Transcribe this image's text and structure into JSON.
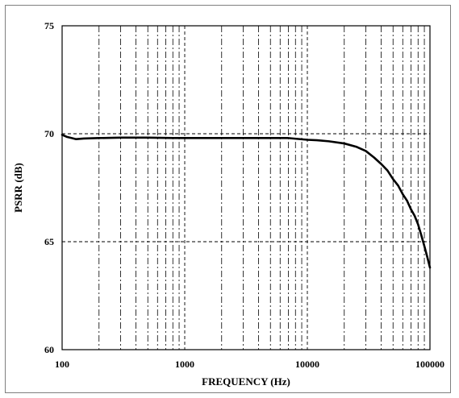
{
  "chart_data": {
    "type": "line",
    "xlabel": "FREQUENCY (Hz)",
    "ylabel": "PSRR (dB)",
    "x_scale": "log",
    "xlim": [
      100,
      100000
    ],
    "ylim": [
      60,
      75
    ],
    "x_ticks": [
      100,
      1000,
      10000,
      100000
    ],
    "x_tick_labels": [
      "100",
      "1000",
      "10000",
      "100000"
    ],
    "y_ticks": [
      60,
      65,
      70,
      75
    ],
    "y_tick_labels": [
      "60",
      "65",
      "70",
      "75"
    ],
    "grid": true,
    "grid_style": "dashed",
    "legend": "none",
    "series": [
      {
        "color": "#000000",
        "x": [
          100,
          110,
          120,
          130,
          150,
          200,
          300,
          500,
          800,
          1000,
          1500,
          2000,
          3000,
          5000,
          7000,
          10000,
          12000,
          15000,
          20000,
          25000,
          30000,
          35000,
          40000,
          45000,
          50000,
          55000,
          60000,
          65000,
          70000,
          75000,
          80000,
          85000,
          90000,
          95000,
          100000
        ],
        "y": [
          69.95,
          69.85,
          69.8,
          69.75,
          69.78,
          69.8,
          69.82,
          69.82,
          69.8,
          69.8,
          69.8,
          69.8,
          69.8,
          69.8,
          69.8,
          69.72,
          69.7,
          69.65,
          69.55,
          69.4,
          69.2,
          68.9,
          68.6,
          68.3,
          67.9,
          67.6,
          67.2,
          66.9,
          66.5,
          66.2,
          65.8,
          65.3,
          64.8,
          64.3,
          63.8
        ]
      }
    ]
  }
}
